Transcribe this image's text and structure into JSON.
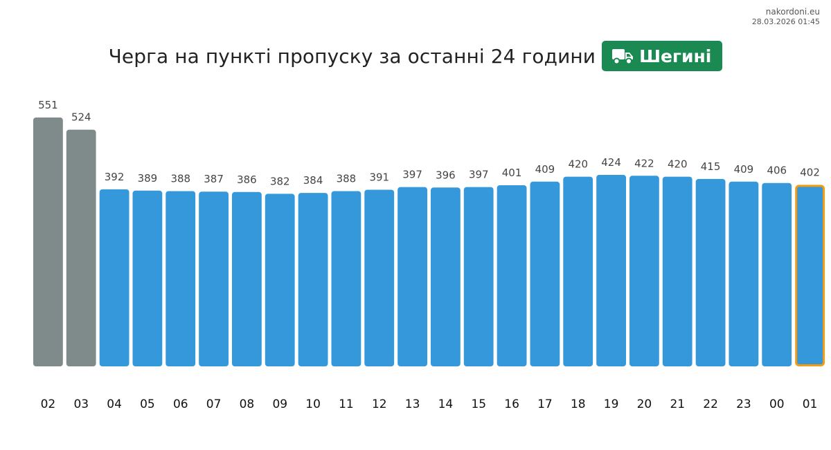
{
  "header": {
    "site": "nakordoni.eu",
    "timestamp": "28.03.2026 01:45",
    "title": "Черга на пункті пропуску за останні 24 години",
    "badge_label": "Шегині",
    "badge_icon": "truck-icon",
    "badge_color": "#1b8a52"
  },
  "chart_data": {
    "type": "bar",
    "title": "Черга на пункті пропуску за останні 24 години",
    "xlabel": "",
    "ylabel": "",
    "categories": [
      "02",
      "03",
      "04",
      "05",
      "06",
      "07",
      "08",
      "09",
      "10",
      "11",
      "12",
      "13",
      "14",
      "15",
      "16",
      "17",
      "18",
      "19",
      "20",
      "21",
      "22",
      "23",
      "00",
      "01"
    ],
    "values": [
      551,
      524,
      392,
      389,
      388,
      387,
      386,
      382,
      384,
      388,
      391,
      397,
      396,
      397,
      401,
      409,
      420,
      424,
      422,
      420,
      415,
      409,
      406,
      402
    ],
    "ylim": [
      0,
      551
    ],
    "grid": false,
    "legend": "none",
    "colors": {
      "past": "#7f8b8b",
      "normal": "#3498db",
      "current_outline": "#f39c12"
    },
    "past_count": 2,
    "highlight_index": 23
  }
}
